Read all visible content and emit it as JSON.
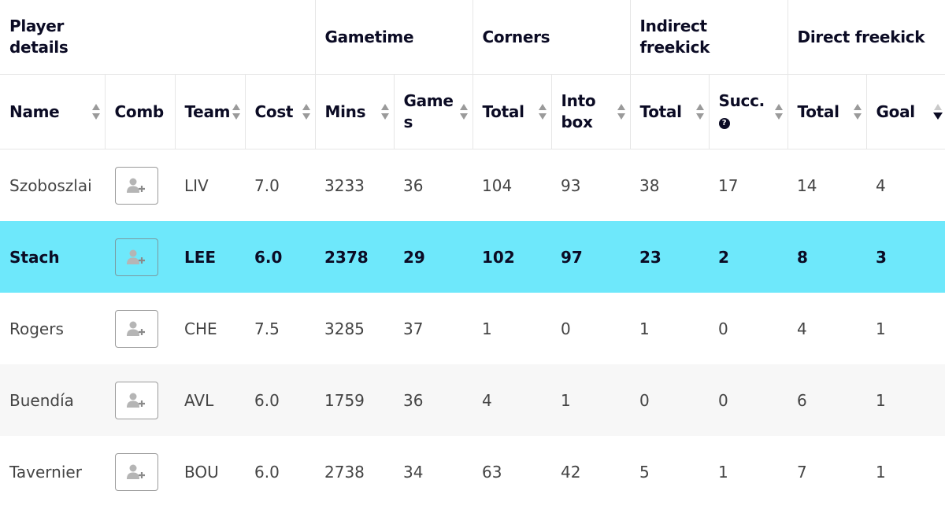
{
  "header": {
    "groups": {
      "player_details": "Player details",
      "gametime": "Gametime",
      "corners": "Corners",
      "indirect_freekick": "Indirect freekick",
      "direct_freekick": "Direct freekick"
    },
    "columns": {
      "name": "Name",
      "comb": "Comb",
      "team": "Team",
      "cost": "Cost",
      "mins": "Mins",
      "games_1": "Game",
      "games_2": "s",
      "corners_total": "Total",
      "into_box_1": "Into",
      "into_box_2": "box",
      "ifk_total": "Total",
      "succ": "Succ.",
      "help": "?",
      "dfk_total": "Total",
      "goal": "Goal"
    }
  },
  "icons": {
    "sort": "sort-arrows-icon",
    "sort_desc": "sort-desc-icon",
    "comb": "add-user-icon"
  },
  "colors": {
    "highlight": "#6ee8fb"
  },
  "rows": [
    {
      "name": "Szoboszlai",
      "team": "LIV",
      "cost": "7.0",
      "mins": "3233",
      "games": "36",
      "c_total": "104",
      "into_box": "93",
      "ifk_total": "38",
      "succ": "17",
      "dfk_total": "14",
      "goal": "4"
    },
    {
      "name": "Stach",
      "team": "LEE",
      "cost": "6.0",
      "mins": "2378",
      "games": "29",
      "c_total": "102",
      "into_box": "97",
      "ifk_total": "23",
      "succ": "2",
      "dfk_total": "8",
      "goal": "3"
    },
    {
      "name": "Rogers",
      "team": "CHE",
      "cost": "7.5",
      "mins": "3285",
      "games": "37",
      "c_total": "1",
      "into_box": "0",
      "ifk_total": "1",
      "succ": "0",
      "dfk_total": "4",
      "goal": "1"
    },
    {
      "name": "Buendía",
      "team": "AVL",
      "cost": "6.0",
      "mins": "1759",
      "games": "36",
      "c_total": "4",
      "into_box": "1",
      "ifk_total": "0",
      "succ": "0",
      "dfk_total": "6",
      "goal": "1"
    },
    {
      "name": "Tavernier",
      "team": "BOU",
      "cost": "6.0",
      "mins": "2738",
      "games": "34",
      "c_total": "63",
      "into_box": "42",
      "ifk_total": "5",
      "succ": "1",
      "dfk_total": "7",
      "goal": "1"
    }
  ]
}
